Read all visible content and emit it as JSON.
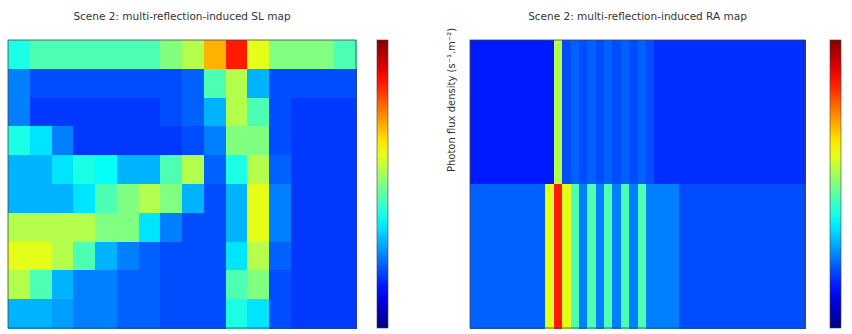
{
  "chart_data": [
    {
      "type": "heatmap",
      "title": "Scene 2: multi-reflection-induced SL map",
      "tick_labels": false,
      "colorbar_range": [
        0,
        1
      ],
      "colorbar_label": "Photon flux density (s⁻¹.m⁻²)",
      "cells": [
        [
          0.4,
          0.45,
          0.45,
          0.45,
          0.45,
          0.45,
          0.45,
          0.5,
          0.55,
          0.7,
          0.85,
          0.6,
          0.5,
          0.5,
          0.5,
          0.45
        ],
        [
          0.25,
          0.2,
          0.2,
          0.2,
          0.2,
          0.2,
          0.2,
          0.2,
          0.22,
          0.45,
          0.55,
          0.3,
          0.2,
          0.2,
          0.2,
          0.2
        ],
        [
          0.25,
          0.18,
          0.18,
          0.18,
          0.18,
          0.18,
          0.18,
          0.2,
          0.22,
          0.3,
          0.55,
          0.45,
          0.2,
          0.18,
          0.18,
          0.18
        ],
        [
          0.4,
          0.35,
          0.25,
          0.18,
          0.18,
          0.18,
          0.18,
          0.18,
          0.2,
          0.25,
          0.5,
          0.5,
          0.2,
          0.18,
          0.18,
          0.18
        ],
        [
          0.3,
          0.3,
          0.35,
          0.4,
          0.38,
          0.3,
          0.3,
          0.45,
          0.55,
          0.22,
          0.4,
          0.55,
          0.22,
          0.18,
          0.18,
          0.18
        ],
        [
          0.3,
          0.3,
          0.3,
          0.35,
          0.45,
          0.5,
          0.55,
          0.5,
          0.3,
          0.2,
          0.3,
          0.6,
          0.25,
          0.18,
          0.18,
          0.18
        ],
        [
          0.55,
          0.55,
          0.55,
          0.55,
          0.5,
          0.5,
          0.35,
          0.25,
          0.2,
          0.2,
          0.3,
          0.6,
          0.25,
          0.18,
          0.18,
          0.18
        ],
        [
          0.6,
          0.6,
          0.55,
          0.45,
          0.3,
          0.25,
          0.22,
          0.2,
          0.2,
          0.2,
          0.35,
          0.55,
          0.22,
          0.18,
          0.18,
          0.18
        ],
        [
          0.55,
          0.45,
          0.3,
          0.25,
          0.25,
          0.22,
          0.22,
          0.2,
          0.2,
          0.2,
          0.45,
          0.5,
          0.2,
          0.18,
          0.18,
          0.18
        ],
        [
          0.3,
          0.3,
          0.28,
          0.25,
          0.25,
          0.22,
          0.22,
          0.2,
          0.2,
          0.2,
          0.4,
          0.35,
          0.2,
          0.18,
          0.18,
          0.18
        ]
      ]
    },
    {
      "type": "heatmap",
      "title": "Scene 2: multi-reflection-induced RA map",
      "tick_labels": false,
      "colorbar_range": [
        0,
        1
      ],
      "cells": [
        [
          0.15,
          0.15,
          0.15,
          0.15,
          0.15,
          0.15,
          0.15,
          0.15,
          0.15,
          0.15,
          0.55,
          0.2,
          0.22,
          0.2,
          0.22,
          0.2,
          0.22,
          0.2,
          0.22,
          0.2,
          0.22,
          0.2,
          0.17,
          0.17,
          0.17,
          0.17,
          0.17,
          0.17,
          0.17,
          0.17,
          0.17,
          0.17,
          0.17,
          0.17,
          0.17,
          0.17,
          0.17,
          0.17,
          0.17,
          0.17
        ],
        [
          0.22,
          0.22,
          0.22,
          0.22,
          0.22,
          0.22,
          0.22,
          0.22,
          0.22,
          0.6,
          0.85,
          0.6,
          0.45,
          0.25,
          0.45,
          0.25,
          0.45,
          0.25,
          0.45,
          0.25,
          0.45,
          0.25,
          0.25,
          0.25,
          0.25,
          0.2,
          0.2,
          0.2,
          0.2,
          0.2,
          0.2,
          0.2,
          0.2,
          0.2,
          0.2,
          0.2,
          0.2,
          0.2,
          0.2,
          0.2
        ]
      ]
    }
  ]
}
